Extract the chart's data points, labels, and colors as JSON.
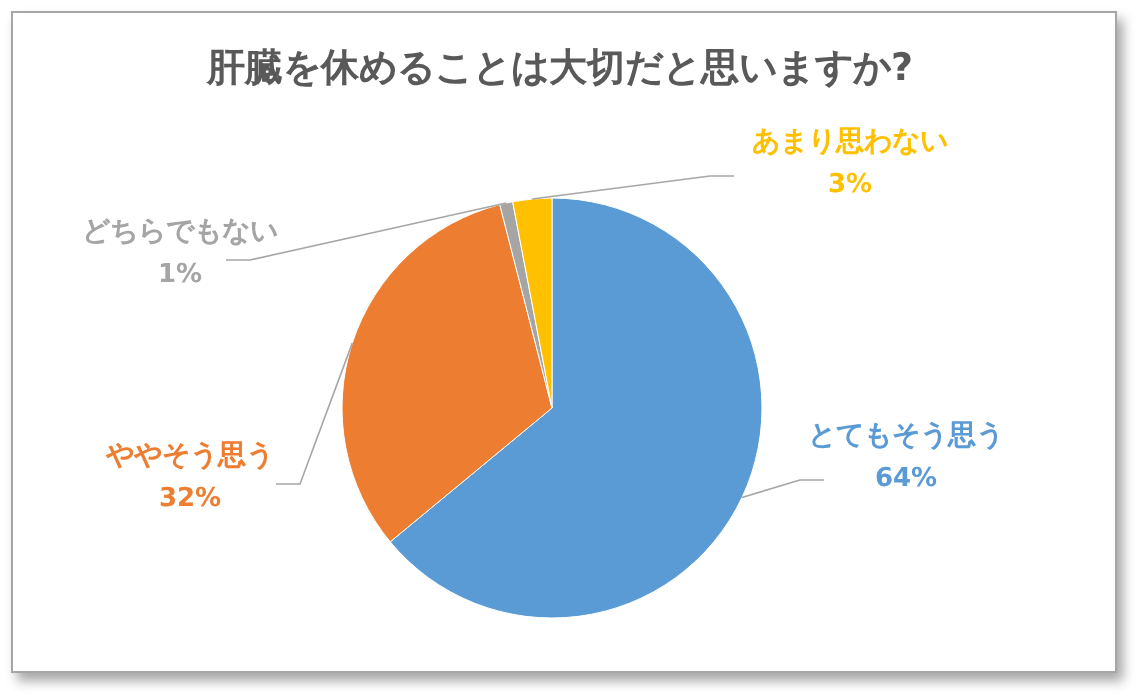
{
  "chart_data": {
    "type": "pie",
    "title": "肝臓を休めることは大切だと思いますか?",
    "categories": [
      "とてもそう思う",
      "ややそう思う",
      "どちらでもない",
      "あまり思わない"
    ],
    "values": [
      64,
      32,
      1,
      3
    ],
    "colors": [
      "#5b9bd5",
      "#ed7d31",
      "#a5a5a5",
      "#ffc000"
    ],
    "value_labels": [
      "64%",
      "32%",
      "1%",
      "3%"
    ]
  }
}
